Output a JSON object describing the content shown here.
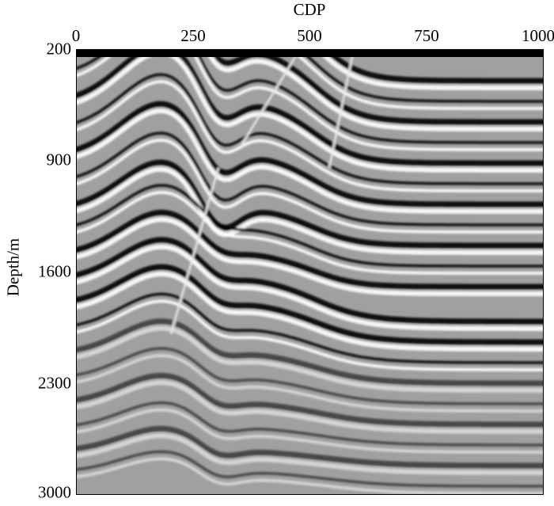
{
  "chart_data": {
    "type": "heatmap",
    "title": "",
    "xlabel": "CDP",
    "ylabel": "Depth/m",
    "xlim": [
      0,
      1000
    ],
    "ylim": [
      3000,
      200
    ],
    "x_axis_position": "top",
    "xticks": [
      "0",
      "250",
      "500",
      "750",
      "1000"
    ],
    "yticks": [
      "200",
      "900",
      "1600",
      "2300",
      "3000"
    ],
    "colormap": "grayscale seismic amplitude",
    "grid": false,
    "colors": {
      "background": "#a0a0a0",
      "positive": "#ffffff",
      "negative": "#000000"
    }
  }
}
